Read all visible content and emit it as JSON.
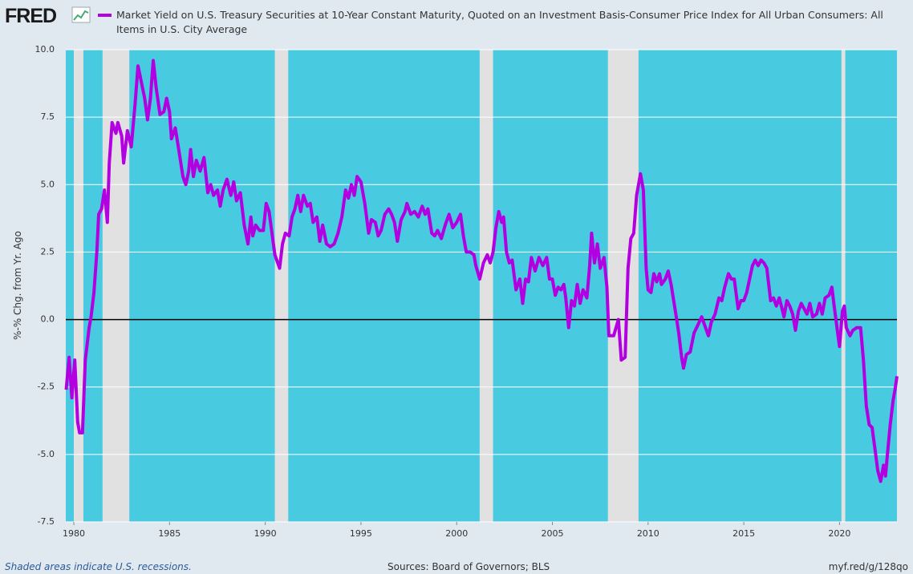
{
  "logo": "FRED",
  "chart_data": {
    "type": "line",
    "ylabel": "%-% Chg. from Yr. Ago",
    "note": "Shaded areas indicate U.S. recessions.",
    "source": "Sources: Board of Governors; BLS",
    "link": "myf.red/g/128qo",
    "xlim": [
      1979.58,
      2023.0
    ],
    "ylim": [
      -7.5,
      10
    ],
    "xticks": [
      1980,
      1985,
      1990,
      1995,
      2000,
      2005,
      2010,
      2015,
      2020
    ],
    "yticks": [
      {
        "value": -7.5,
        "label": "-7.5"
      },
      {
        "value": -5,
        "label": "-5.0"
      },
      {
        "value": -2.5,
        "label": "-2.5"
      },
      {
        "value": 0,
        "label": "0.0"
      },
      {
        "value": 2.5,
        "label": "2.5"
      },
      {
        "value": 5,
        "label": "5.0"
      },
      {
        "value": 7.5,
        "label": "7.5"
      },
      {
        "value": 10,
        "label": "10.0"
      }
    ],
    "grid": true,
    "background": "#48cae1",
    "recession_color": "#e1e1e1",
    "recessions": [
      [
        1980.0,
        1980.5
      ],
      [
        1981.5,
        1982.9
      ],
      [
        1990.5,
        1991.2
      ],
      [
        2001.2,
        2001.9
      ],
      [
        2007.9,
        2009.5
      ],
      [
        2020.1,
        2020.3
      ]
    ],
    "x": [
      1979.6,
      1979.75,
      1979.9,
      1980.05,
      1980.2,
      1980.3,
      1980.45,
      1980.6,
      1980.8,
      1980.9,
      1981.05,
      1981.2,
      1981.3,
      1981.45,
      1981.6,
      1981.75,
      1981.85,
      1982.0,
      1982.2,
      1982.3,
      1982.5,
      1982.6,
      1982.8,
      1983.0,
      1983.2,
      1983.35,
      1983.5,
      1983.7,
      1983.85,
      1984.0,
      1984.15,
      1984.3,
      1984.5,
      1984.7,
      1984.85,
      1985.0,
      1985.1,
      1985.3,
      1985.5,
      1985.7,
      1985.85,
      1986.0,
      1986.1,
      1986.25,
      1986.4,
      1986.6,
      1986.8,
      1987.0,
      1987.15,
      1987.3,
      1987.5,
      1987.65,
      1987.8,
      1988.0,
      1988.2,
      1988.35,
      1988.5,
      1988.7,
      1988.9,
      1989.1,
      1989.25,
      1989.35,
      1989.5,
      1989.7,
      1989.9,
      1990.05,
      1990.2,
      1990.35,
      1990.5,
      1990.75,
      1990.9,
      1991.05,
      1991.25,
      1991.4,
      1991.55,
      1991.7,
      1991.85,
      1992.0,
      1992.2,
      1992.35,
      1992.5,
      1992.7,
      1992.85,
      1993.0,
      1993.2,
      1993.4,
      1993.6,
      1993.8,
      1994.0,
      1994.2,
      1994.35,
      1994.5,
      1994.65,
      1994.8,
      1995.0,
      1995.2,
      1995.4,
      1995.55,
      1995.75,
      1995.9,
      1996.05,
      1996.25,
      1996.45,
      1996.6,
      1996.75,
      1996.9,
      1997.1,
      1997.3,
      1997.4,
      1997.6,
      1997.8,
      1998.0,
      1998.2,
      1998.35,
      1998.5,
      1998.7,
      1998.85,
      1999.0,
      1999.2,
      1999.4,
      1999.6,
      1999.8,
      2000.0,
      2000.2,
      2000.35,
      2000.5,
      2000.7,
      2000.9,
      2001.0,
      2001.2,
      2001.4,
      2001.6,
      2001.75,
      2001.9,
      2002.05,
      2002.2,
      2002.35,
      2002.45,
      2002.6,
      2002.75,
      2002.9,
      2003.1,
      2003.3,
      2003.45,
      2003.6,
      2003.75,
      2003.9,
      2004.1,
      2004.3,
      2004.5,
      2004.7,
      2004.85,
      2005.0,
      2005.15,
      2005.3,
      2005.45,
      2005.6,
      2005.7,
      2005.85,
      2006.0,
      2006.15,
      2006.3,
      2006.45,
      2006.6,
      2006.8,
      2006.95,
      2007.05,
      2007.2,
      2007.35,
      2007.5,
      2007.7,
      2007.85,
      2007.95,
      2008.2,
      2008.45,
      2008.6,
      2008.8,
      2008.95,
      2009.1,
      2009.25,
      2009.4,
      2009.6,
      2009.75,
      2009.9,
      2010.0,
      2010.15,
      2010.3,
      2010.45,
      2010.6,
      2010.7,
      2010.9,
      2011.05,
      2011.2,
      2011.45,
      2011.6,
      2011.75,
      2011.85,
      2012.0,
      2012.2,
      2012.4,
      2012.6,
      2012.8,
      2013.0,
      2013.15,
      2013.3,
      2013.5,
      2013.7,
      2013.85,
      2014.0,
      2014.2,
      2014.35,
      2014.5,
      2014.7,
      2014.85,
      2015.0,
      2015.15,
      2015.3,
      2015.45,
      2015.6,
      2015.75,
      2015.9,
      2016.05,
      2016.2,
      2016.4,
      2016.55,
      2016.7,
      2016.85,
      2017.0,
      2017.1,
      2017.25,
      2017.4,
      2017.55,
      2017.7,
      2017.85,
      2018.0,
      2018.15,
      2018.3,
      2018.45,
      2018.6,
      2018.8,
      2018.95,
      2019.1,
      2019.25,
      2019.45,
      2019.6,
      2019.7,
      2019.85,
      2020.0,
      2020.15,
      2020.25,
      2020.35,
      2020.55,
      2020.7,
      2020.9,
      2021.1,
      2021.25,
      2021.4,
      2021.55,
      2021.7,
      2021.85,
      2022.0,
      2022.15,
      2022.3,
      2022.4,
      2022.5,
      2022.65,
      2022.8,
      2022.9,
      2023.0
    ],
    "series": [
      {
        "name": "Market Yield on U.S. Treasury Securities at 10-Year Constant Maturity, Quoted on an Investment Basis-Consumer Price Index for All Urban Consumers: All Items in U.S. City Average",
        "color": "#b300e0",
        "values": [
          -2.6,
          -1.4,
          -2.9,
          -1.5,
          -3.8,
          -4.2,
          -4.2,
          -1.5,
          -0.3,
          0.1,
          1.0,
          2.5,
          3.9,
          4.1,
          4.8,
          3.6,
          5.8,
          7.3,
          6.9,
          7.3,
          6.8,
          5.8,
          7.0,
          6.4,
          8.0,
          9.4,
          8.9,
          8.2,
          7.4,
          8.2,
          9.6,
          8.6,
          7.6,
          7.7,
          8.2,
          7.7,
          6.7,
          7.1,
          6.2,
          5.3,
          5.0,
          5.5,
          6.3,
          5.3,
          5.9,
          5.5,
          6.0,
          4.7,
          5.0,
          4.6,
          4.8,
          4.2,
          4.8,
          5.2,
          4.6,
          5.1,
          4.4,
          4.7,
          3.5,
          2.8,
          3.8,
          3.1,
          3.5,
          3.3,
          3.3,
          4.3,
          4.0,
          3.2,
          2.4,
          1.9,
          2.8,
          3.2,
          3.1,
          3.8,
          4.1,
          4.6,
          4.0,
          4.6,
          4.2,
          4.3,
          3.6,
          3.8,
          2.9,
          3.5,
          2.8,
          2.7,
          2.8,
          3.2,
          3.8,
          4.8,
          4.5,
          5.0,
          4.6,
          5.3,
          5.1,
          4.3,
          3.2,
          3.7,
          3.6,
          3.1,
          3.3,
          3.9,
          4.1,
          3.9,
          3.6,
          2.9,
          3.7,
          4.0,
          4.3,
          3.9,
          4.0,
          3.8,
          4.2,
          3.9,
          4.1,
          3.2,
          3.1,
          3.3,
          3.0,
          3.5,
          3.9,
          3.4,
          3.6,
          3.9,
          3.1,
          2.5,
          2.5,
          2.4,
          2.0,
          1.5,
          2.1,
          2.4,
          2.1,
          2.5,
          3.4,
          4.0,
          3.6,
          3.8,
          2.5,
          2.1,
          2.2,
          1.1,
          1.5,
          0.6,
          1.5,
          1.4,
          2.3,
          1.8,
          2.3,
          2.0,
          2.3,
          1.5,
          1.5,
          0.9,
          1.2,
          1.1,
          1.3,
          0.8,
          -0.3,
          0.7,
          0.5,
          1.3,
          0.6,
          1.1,
          0.8,
          2.0,
          3.2,
          2.1,
          2.8,
          1.9,
          2.3,
          1.2,
          -0.6,
          -0.6,
          0.0,
          -1.5,
          -1.4,
          1.9,
          3.0,
          3.2,
          4.6,
          5.4,
          4.8,
          1.9,
          1.1,
          1.0,
          1.7,
          1.4,
          1.7,
          1.3,
          1.5,
          1.8,
          1.3,
          0.2,
          -0.5,
          -1.4,
          -1.8,
          -1.3,
          -1.2,
          -0.5,
          -0.2,
          0.1,
          -0.3,
          -0.6,
          -0.1,
          0.2,
          0.8,
          0.7,
          1.2,
          1.7,
          1.5,
          1.5,
          0.4,
          0.7,
          0.7,
          1.0,
          1.5,
          2.0,
          2.2,
          2.0,
          2.2,
          2.1,
          1.9,
          0.7,
          0.8,
          0.5,
          0.8,
          0.4,
          0.1,
          0.7,
          0.5,
          0.2,
          -0.4,
          0.3,
          0.6,
          0.4,
          0.2,
          0.6,
          0.1,
          0.2,
          0.6,
          0.2,
          0.8,
          0.9,
          1.2,
          0.6,
          -0.2,
          -1.0,
          0.3,
          0.5,
          -0.3,
          -0.6,
          -0.4,
          -0.3,
          -0.3,
          -1.5,
          -3.2,
          -3.9,
          -4.0,
          -4.8,
          -5.6,
          -6.0,
          -5.4,
          -5.8,
          -5.0,
          -3.9,
          -3.0,
          -2.6,
          -2.1
        ]
      }
    ]
  }
}
